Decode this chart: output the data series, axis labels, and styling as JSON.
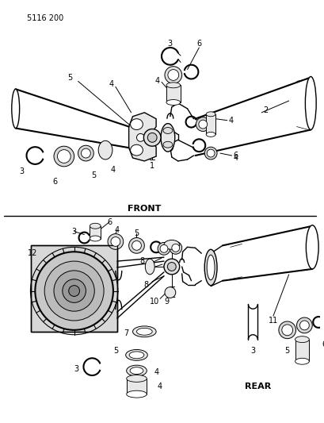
{
  "part_number": "5116 200",
  "background_color": "#ffffff",
  "line_color": "#000000",
  "figsize": [
    4.1,
    5.33
  ],
  "dpi": 100,
  "front_label": "FRONT",
  "rear_label": "REAR"
}
